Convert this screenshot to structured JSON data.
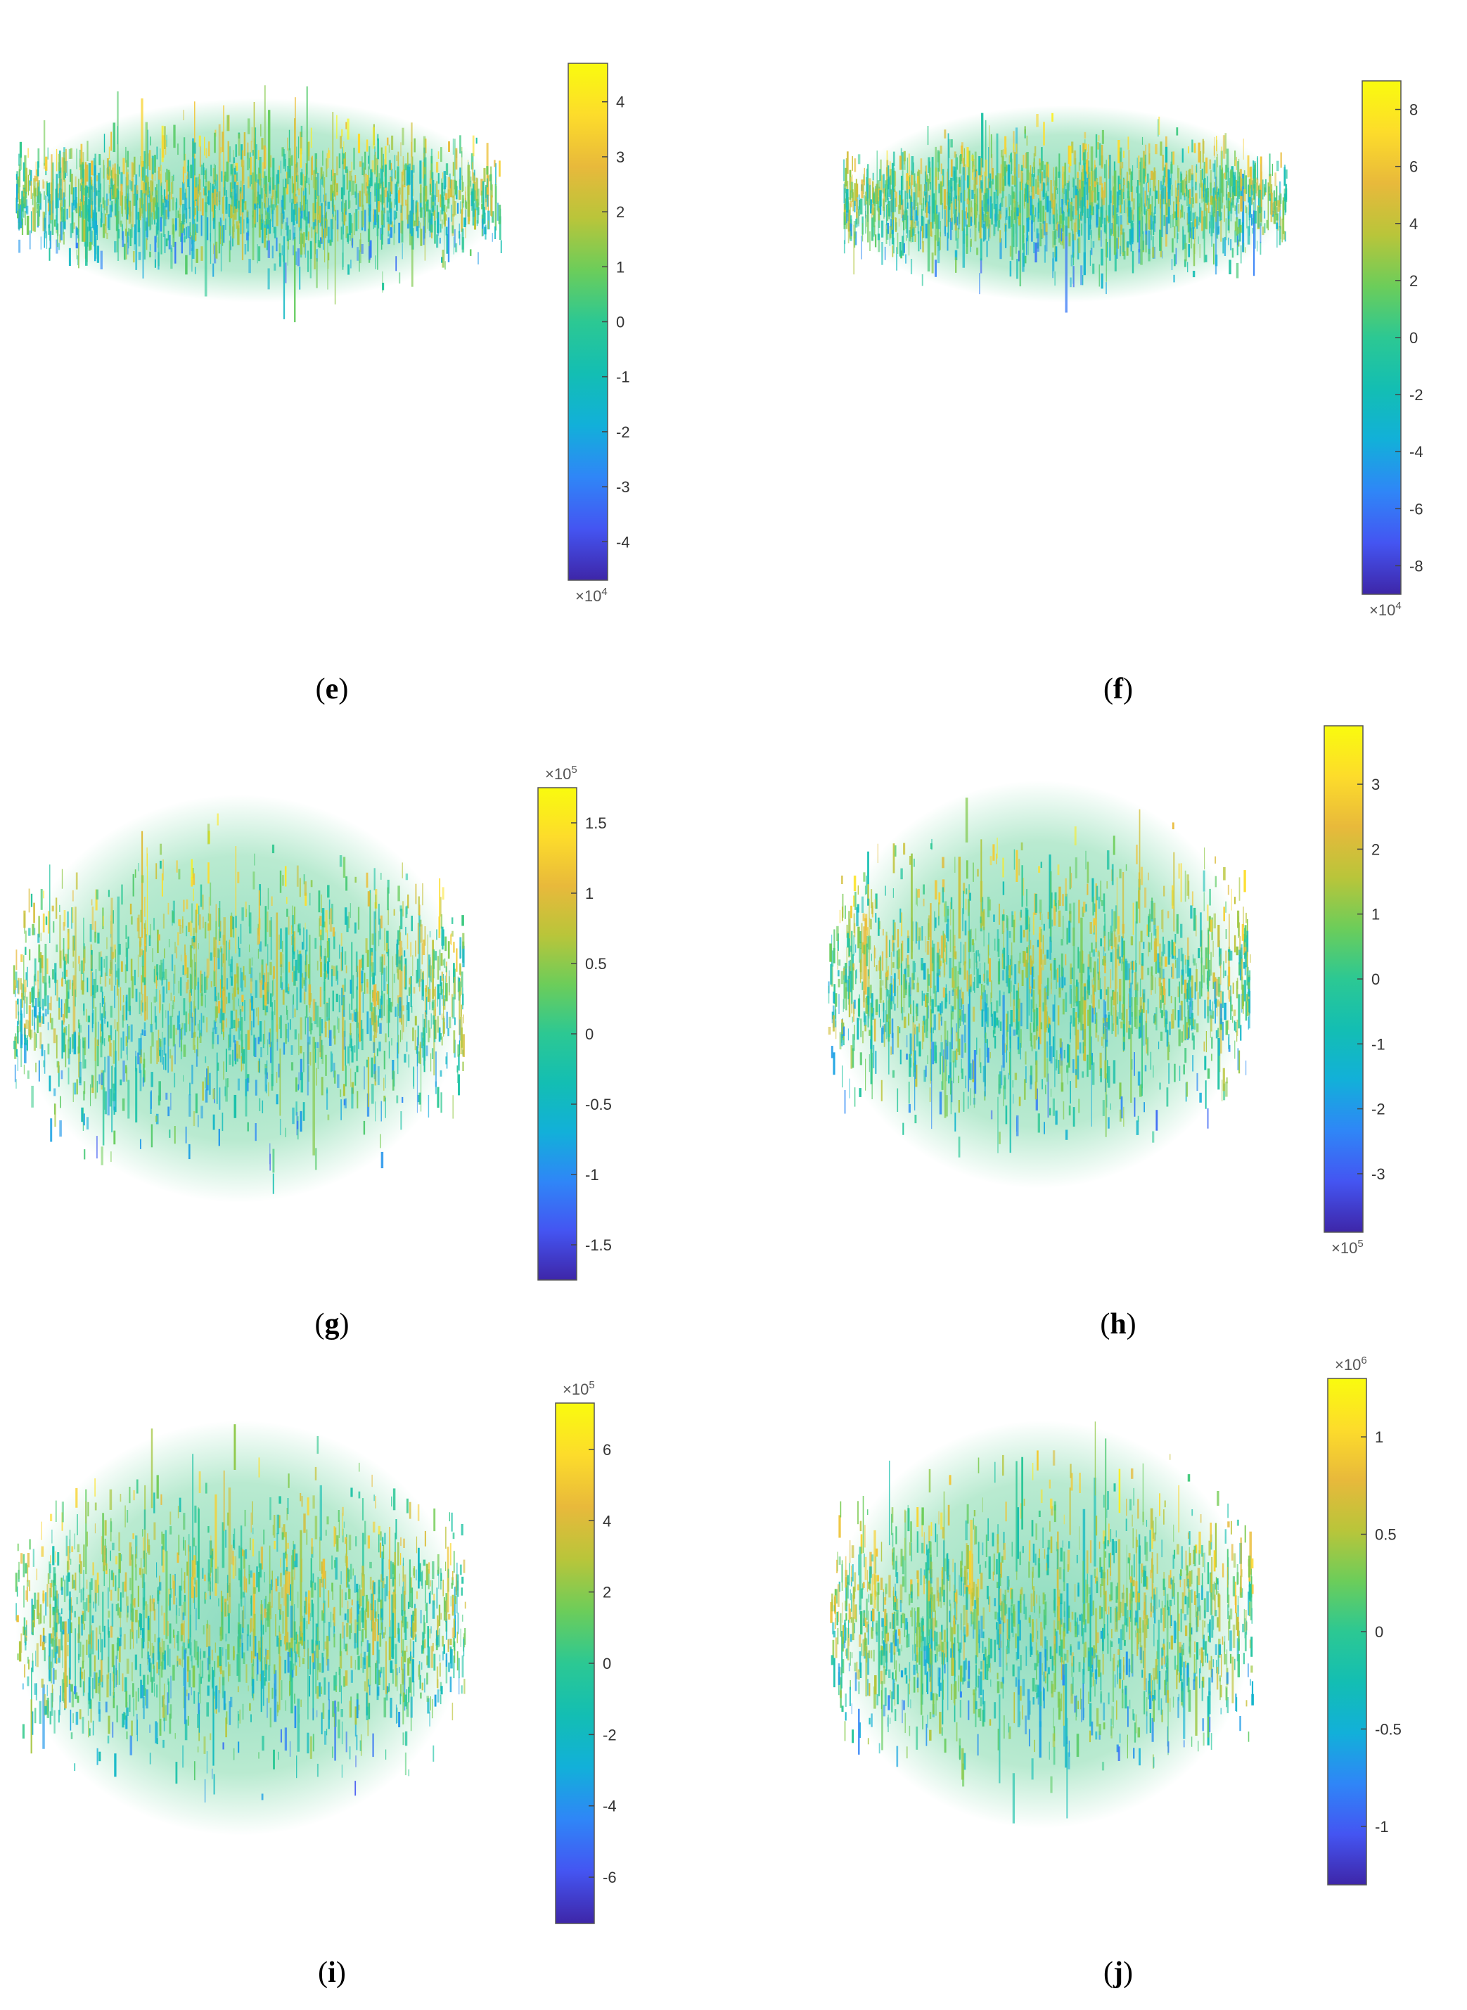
{
  "chart_data": [
    {
      "type": "heatmap",
      "panel": "e",
      "caption": [
        "(",
        "e",
        ")"
      ],
      "colorbar": {
        "ticks": [
          4,
          3,
          2,
          1,
          0,
          -1,
          -2,
          -3,
          -4
        ],
        "range": [
          -4.7,
          4.7
        ],
        "multiplier_base": "×10",
        "multiplier_exp": "4",
        "multiplier_position": "bottom"
      }
    },
    {
      "type": "heatmap",
      "panel": "f",
      "caption": [
        "(",
        "f",
        ")"
      ],
      "colorbar": {
        "ticks": [
          8,
          6,
          4,
          2,
          0,
          -2,
          -4,
          -6,
          -8
        ],
        "range": [
          -9,
          9
        ],
        "multiplier_base": "×10",
        "multiplier_exp": "4",
        "multiplier_position": "bottom"
      }
    },
    {
      "type": "heatmap",
      "panel": "g",
      "caption": [
        "(",
        "g",
        ")"
      ],
      "colorbar": {
        "ticks": [
          1.5,
          1,
          0.5,
          0,
          -0.5,
          -1,
          -1.5
        ],
        "range": [
          -1.75,
          1.75
        ],
        "multiplier_base": "×10",
        "multiplier_exp": "5",
        "multiplier_position": "top"
      }
    },
    {
      "type": "heatmap",
      "panel": "h",
      "caption": [
        "(",
        "h",
        ")"
      ],
      "colorbar": {
        "ticks": [
          3,
          2,
          1,
          0,
          -1,
          -2,
          -3
        ],
        "range": [
          -3.9,
          3.9
        ],
        "multiplier_base": "×10",
        "multiplier_exp": "5",
        "multiplier_position": "bottom"
      }
    },
    {
      "type": "heatmap",
      "panel": "i",
      "caption": [
        "(",
        "i",
        ")"
      ],
      "colorbar": {
        "ticks": [
          6,
          4,
          2,
          0,
          -2,
          -4,
          -6
        ],
        "range": [
          -7.3,
          7.3
        ],
        "multiplier_base": "×10",
        "multiplier_exp": "5",
        "multiplier_position": "top"
      }
    },
    {
      "type": "heatmap",
      "panel": "j",
      "caption": [
        "(",
        "j",
        ")"
      ],
      "colorbar": {
        "ticks": [
          1,
          0.5,
          0,
          -0.5,
          -1
        ],
        "range": [
          -1.3,
          1.3
        ],
        "multiplier_base": "×10",
        "multiplier_exp": "6",
        "multiplier_position": "top"
      }
    }
  ],
  "colors": {
    "colormap": "parula",
    "stops": [
      "#3e26a8",
      "#4455f2",
      "#2f86f7",
      "#12b0d9",
      "#13beb3",
      "#2cc893",
      "#6ccd5a",
      "#b9c53a",
      "#e8b93b",
      "#fddc2b",
      "#f9fb0e"
    ],
    "background": "#ffffff"
  }
}
